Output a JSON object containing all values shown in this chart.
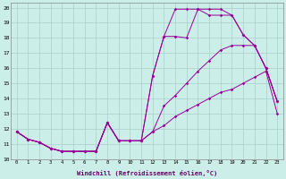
{
  "xlabel": "Windchill (Refroidissement éolien,°C)",
  "background_color": "#cceee8",
  "grid_color": "#aacccc",
  "line_color": "#990099",
  "xlim": [
    -0.5,
    23.5
  ],
  "ylim": [
    10,
    20.3
  ],
  "yticks": [
    10,
    11,
    12,
    13,
    14,
    15,
    16,
    17,
    18,
    19,
    20
  ],
  "xticks": [
    0,
    1,
    2,
    3,
    4,
    5,
    6,
    7,
    8,
    9,
    10,
    11,
    12,
    13,
    14,
    15,
    16,
    17,
    18,
    19,
    20,
    21,
    22,
    23
  ],
  "series": [
    [
      11.8,
      11.3,
      11.1,
      10.7,
      10.5,
      10.5,
      10.5,
      10.5,
      12.4,
      11.2,
      11.2,
      11.2,
      11.8,
      12.2,
      12.8,
      13.2,
      13.6,
      14.0,
      14.4,
      14.6,
      15.0,
      15.4,
      15.8,
      13.0
    ],
    [
      11.8,
      11.3,
      11.1,
      10.7,
      10.5,
      10.5,
      10.5,
      10.5,
      12.4,
      11.2,
      11.2,
      11.2,
      11.8,
      13.5,
      14.2,
      15.0,
      15.8,
      16.5,
      17.2,
      17.5,
      17.5,
      17.5,
      16.0,
      13.8
    ],
    [
      11.8,
      11.3,
      11.1,
      10.7,
      10.5,
      10.5,
      10.5,
      10.5,
      12.4,
      11.2,
      11.2,
      11.2,
      15.5,
      18.1,
      18.1,
      18.0,
      19.9,
      19.5,
      19.5,
      19.5,
      18.2,
      17.5,
      16.0,
      13.8
    ],
    [
      11.8,
      11.3,
      11.1,
      10.7,
      10.5,
      10.5,
      10.5,
      10.5,
      12.4,
      11.2,
      11.2,
      11.2,
      15.5,
      18.1,
      19.9,
      19.9,
      19.9,
      19.9,
      19.9,
      19.5,
      18.2,
      17.5,
      16.0,
      13.8
    ]
  ]
}
